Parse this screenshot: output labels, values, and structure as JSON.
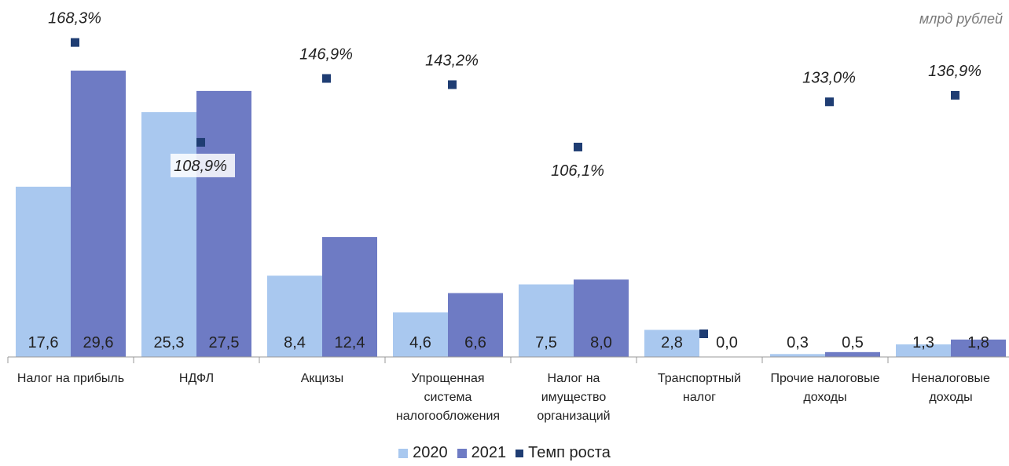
{
  "chart_data": {
    "type": "bar",
    "unit_label": "млрд рублей",
    "categories": [
      [
        "Налог на прибыль"
      ],
      [
        "НДФЛ"
      ],
      [
        "Акцизы"
      ],
      [
        "Упрощенная",
        "система",
        "налогообложения"
      ],
      [
        "Налог на",
        "имущество",
        "организаций"
      ],
      [
        "Транспортный",
        "налог"
      ],
      [
        "Прочие налоговые",
        "доходы"
      ],
      [
        "Неналоговые",
        "доходы"
      ]
    ],
    "series": [
      {
        "name": "2020",
        "color": "#a9c8ef",
        "values": [
          17.6,
          25.3,
          8.4,
          4.6,
          7.5,
          2.8,
          0.3,
          1.3
        ],
        "labels": [
          "17,6",
          "25,3",
          "8,4",
          "4,6",
          "7,5",
          "2,8",
          "0,3",
          "1,3"
        ]
      },
      {
        "name": "2021",
        "color": "#6e7bc4",
        "values": [
          29.6,
          27.5,
          12.4,
          6.6,
          8.0,
          0.0,
          0.5,
          1.8
        ],
        "labels": [
          "29,6",
          "27,5",
          "12,4",
          "6,6",
          "8,0",
          "0,0",
          "0,5",
          "1,8"
        ]
      }
    ],
    "growth": {
      "name": "Темп роста",
      "color": "#1f3d73",
      "values": [
        168.3,
        108.9,
        146.9,
        143.2,
        106.1,
        0.0,
        133.0,
        136.9
      ],
      "labels": [
        "168,3%",
        "108,9%",
        "146,9%",
        "143,2%",
        "106,1%",
        "",
        "133,0%",
        "136,9%"
      ],
      "label_side": [
        "above",
        "below",
        "above",
        "above",
        "below",
        "",
        "above",
        "above"
      ]
    },
    "ylim": [
      0,
      33
    ],
    "growth_ylim": [
      0,
      180
    ],
    "legend": "bottom"
  }
}
